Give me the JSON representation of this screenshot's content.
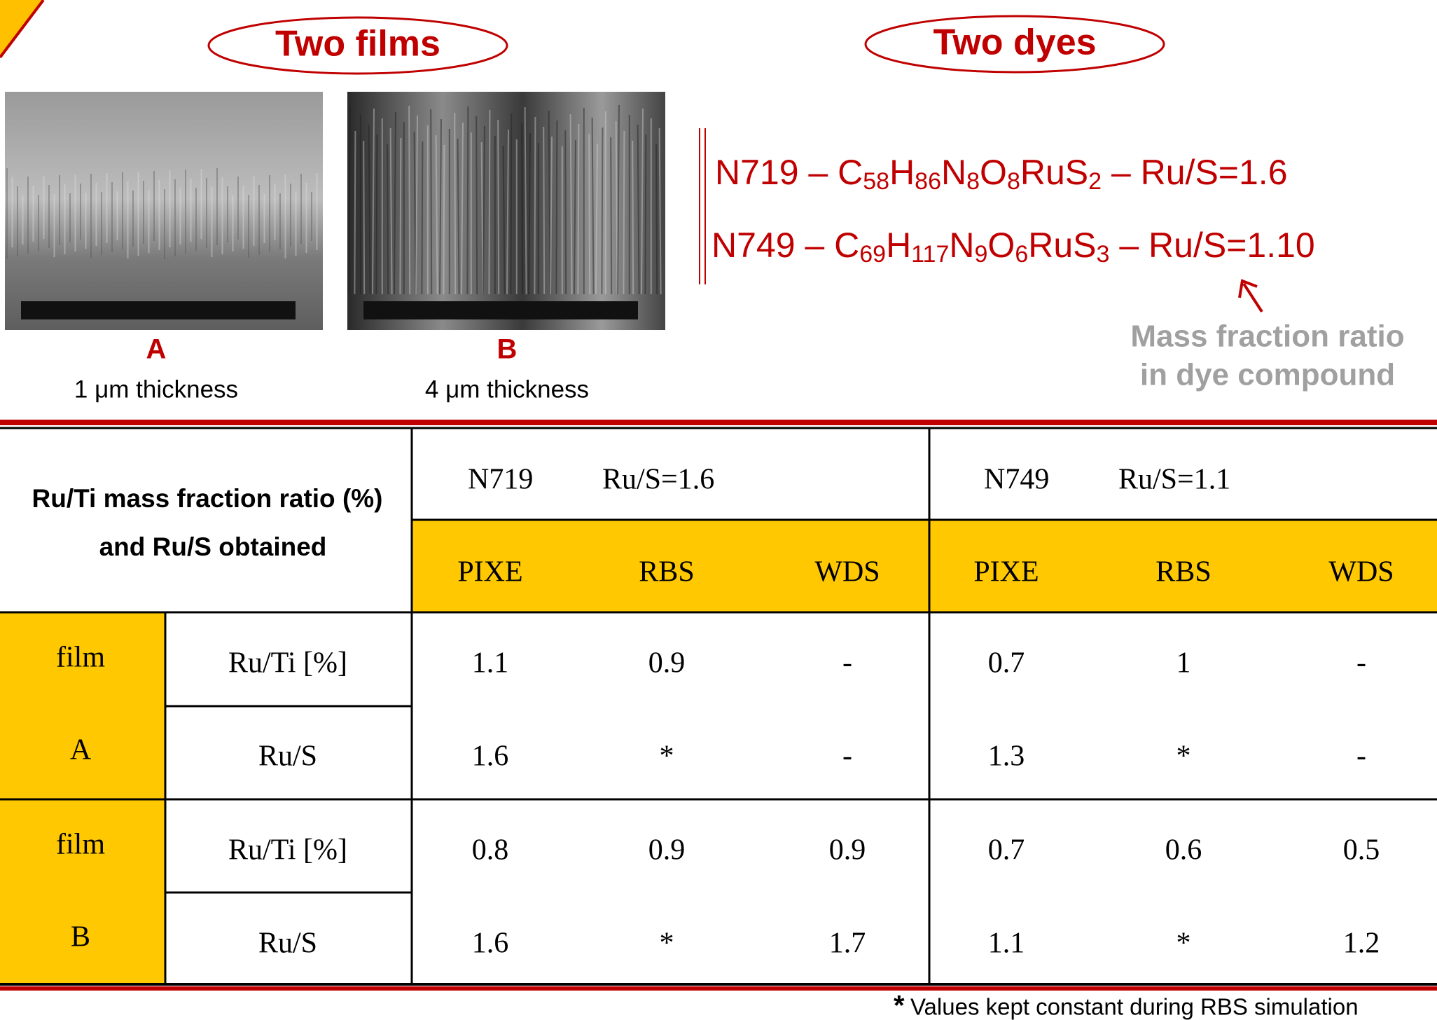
{
  "header": {
    "films_title": "Two films",
    "dyes_title": "Two dyes"
  },
  "films": [
    {
      "label": "A",
      "caption": "1 μm thickness"
    },
    {
      "label": "B",
      "caption": "4 μm thickness"
    }
  ],
  "formulas": [
    {
      "segments": [
        [
          "N719 – C",
          "58"
        ],
        [
          "H",
          "86"
        ],
        [
          "N",
          "8"
        ],
        [
          "O",
          "8"
        ],
        [
          "RuS",
          "2"
        ],
        [
          " – Ru/S=1.6"
        ]
      ]
    },
    {
      "segments": [
        [
          "N749 – C",
          "69"
        ],
        [
          "H",
          "117"
        ],
        [
          "N",
          "9"
        ],
        [
          "O",
          "6"
        ],
        [
          "RuS",
          "3"
        ],
        [
          " – Ru/S=1.10"
        ]
      ]
    }
  ],
  "annotation": [
    "Mass fraction ratio",
    "in dye compound"
  ],
  "table": {
    "corner": [
      "Ru/Ti mass fraction ratio (%)",
      "and Ru/S obtained"
    ],
    "dyes": [
      {
        "name": "N719",
        "ratio": "Ru/S=1.6"
      },
      {
        "name": "N749",
        "ratio": "Ru/S=1.1"
      }
    ],
    "methods": [
      "PIXE",
      "RBS",
      "WDS",
      "PIXE",
      "RBS",
      "WDS"
    ],
    "groups": [
      {
        "film": [
          "film",
          "A"
        ],
        "rows": [
          {
            "label": "Ru/Ti [%]",
            "values": [
              1.1,
              0.9,
              "-",
              0.7,
              1,
              "-"
            ]
          },
          {
            "label": "Ru/S",
            "values": [
              1.6,
              "*",
              "-",
              1.3,
              "*",
              "-"
            ]
          }
        ]
      },
      {
        "film": [
          "film",
          "B"
        ],
        "rows": [
          {
            "label": "Ru/Ti [%]",
            "values": [
              0.8,
              0.9,
              0.9,
              0.7,
              0.6,
              0.5
            ]
          },
          {
            "label": "Ru/S",
            "values": [
              1.6,
              "*",
              1.7,
              1.1,
              "*",
              1.2
            ]
          }
        ]
      }
    ]
  },
  "footnote": {
    "mark": "*",
    "text": "Values kept constant during RBS simulation"
  }
}
